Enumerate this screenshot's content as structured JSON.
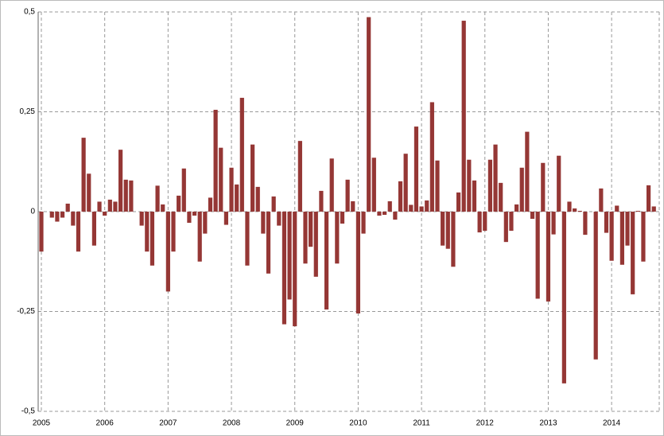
{
  "chart_data": {
    "type": "bar",
    "categories": [
      "2005",
      null,
      null,
      null,
      null,
      null,
      null,
      null,
      null,
      null,
      null,
      null,
      "2006",
      null,
      null,
      null,
      null,
      null,
      null,
      null,
      null,
      null,
      null,
      null,
      "2007",
      null,
      null,
      null,
      null,
      null,
      null,
      null,
      null,
      null,
      null,
      null,
      "2008",
      null,
      null,
      null,
      null,
      null,
      null,
      null,
      null,
      null,
      null,
      null,
      "2009",
      null,
      null,
      null,
      null,
      null,
      null,
      null,
      null,
      null,
      null,
      null,
      "2010",
      null,
      null,
      null,
      null,
      null,
      null,
      null,
      null,
      null,
      null,
      null,
      "2011",
      null,
      null,
      null,
      null,
      null,
      null,
      null,
      null,
      null,
      null,
      null,
      "2012",
      null,
      null,
      null,
      null,
      null,
      null,
      null,
      null,
      null,
      null,
      null,
      "2013",
      null,
      null,
      null,
      null,
      null,
      null,
      null,
      null,
      null,
      null,
      null,
      "2014",
      null,
      null,
      null,
      null,
      null,
      null,
      null,
      null
    ],
    "values": [
      -0.1,
      0,
      -0.015,
      -0.025,
      -0.015,
      0.02,
      -0.035,
      -0.1,
      0.185,
      0.095,
      -0.085,
      0.025,
      -0.01,
      0.03,
      0.025,
      0.155,
      0.08,
      0.078,
      0,
      -0.035,
      -0.1,
      -0.135,
      0.065,
      0.018,
      -0.2,
      -0.1,
      0.04,
      0.108,
      -0.028,
      -0.01,
      -0.125,
      -0.055,
      0.035,
      0.255,
      0.16,
      -0.033,
      0.11,
      0.068,
      0.285,
      -0.135,
      0.168,
      0.062,
      -0.055,
      -0.155,
      0.038,
      -0.035,
      -0.282,
      -0.22,
      -0.287,
      0.177,
      -0.13,
      -0.088,
      -0.163,
      0.052,
      -0.245,
      0.133,
      -0.13,
      -0.03,
      0.08,
      0.026,
      -0.255,
      -0.055,
      0.487,
      0.135,
      -0.01,
      -0.008,
      0.026,
      -0.02,
      0.076,
      0.145,
      0.017,
      0.213,
      0.013,
      0.028,
      0.274,
      0.128,
      -0.085,
      -0.093,
      -0.138,
      0.048,
      0.478,
      0.13,
      0.078,
      -0.052,
      -0.048,
      0.13,
      0.168,
      0.072,
      -0.076,
      -0.048,
      0.018,
      0.11,
      0.2,
      -0.018,
      -0.218,
      0.122,
      -0.225,
      -0.057,
      0.14,
      -0.43,
      0.025,
      0.008,
      0.002,
      -0.058,
      0,
      -0.37,
      0.058,
      -0.053,
      -0.123,
      0.015,
      -0.133,
      -0.085,
      -0.207,
      0.002,
      -0.125,
      0.066,
      0.013
    ],
    "color": "#953735",
    "ylim": [
      -0.5,
      0.5
    ],
    "yticks": [
      {
        "value": -0.5,
        "label": "-0,5"
      },
      {
        "value": -0.25,
        "label": "-0,25"
      },
      0,
      {
        "value": 0.25,
        "label": "0,25"
      },
      {
        "value": 0.5,
        "label": "0,5"
      }
    ],
    "grid": true
  }
}
